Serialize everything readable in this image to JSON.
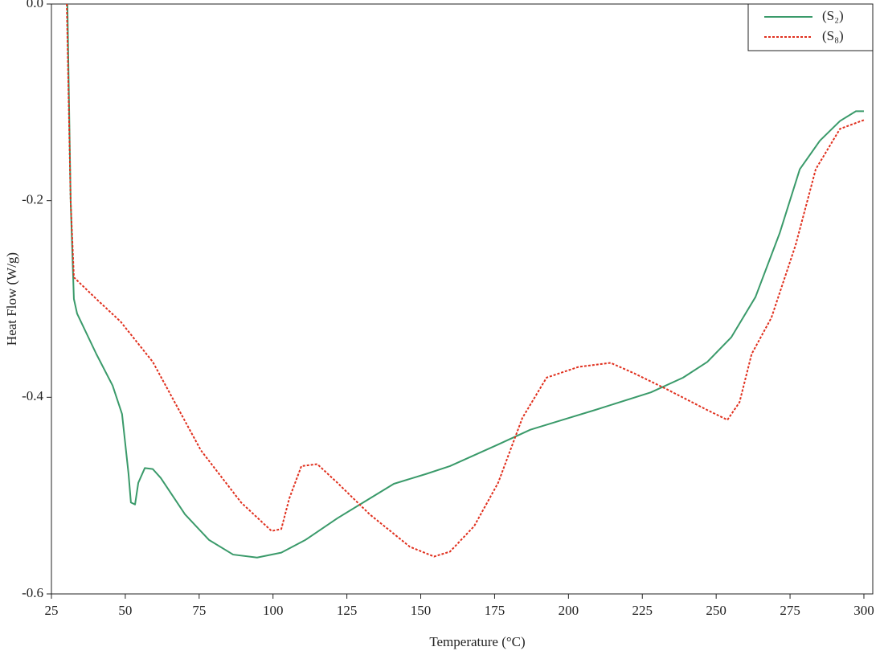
{
  "chart_data": {
    "type": "line",
    "xlabel": "Temperature (°C)",
    "ylabel": "Heat Flow (W/g)",
    "xlim": [
      25,
      303
    ],
    "ylim": [
      -0.6,
      0
    ],
    "xticks": [
      25,
      50,
      75,
      100,
      125,
      150,
      175,
      200,
      225,
      250,
      275,
      300
    ],
    "yticks": [
      {
        "value": 0,
        "label": "0.0"
      },
      -0.2,
      -0.4,
      -0.6
    ],
    "legend": "upper-right",
    "series": [
      {
        "name": "(S₂)",
        "color": "#3a9a6a",
        "dash": "solid",
        "x": [
          30.4,
          31.5,
          32.6,
          33.7,
          40.2,
          45.7,
          48.9,
          51.1,
          51.9,
          53.3,
          54.4,
          56.6,
          59.3,
          62,
          70.2,
          78.3,
          86.5,
          94.6,
          102.8,
          111,
          121.8,
          132.7,
          140.9,
          151.8,
          159.9,
          176.2,
          187.1,
          198,
          208.9,
          227.9,
          238.8,
          247,
          255.1,
          263.3,
          271.5,
          278.3,
          285.1,
          291.9,
          297.3,
          300
        ],
        "values": [
          0,
          -0.2,
          -0.3,
          -0.315,
          -0.356,
          -0.388,
          -0.417,
          -0.478,
          -0.507,
          -0.509,
          -0.487,
          -0.472,
          -0.473,
          -0.482,
          -0.519,
          -0.545,
          -0.56,
          -0.563,
          -0.558,
          -0.545,
          -0.523,
          -0.503,
          -0.488,
          -0.478,
          -0.47,
          -0.448,
          -0.433,
          -0.423,
          -0.413,
          -0.395,
          -0.38,
          -0.364,
          -0.339,
          -0.298,
          -0.233,
          -0.168,
          -0.139,
          -0.119,
          -0.109,
          -0.109
        ]
      },
      {
        "name": "(S₈)",
        "color": "#e0301e",
        "dash": "dotted",
        "x": [
          30.2,
          31.5,
          32.6,
          40.2,
          48.4,
          59.3,
          75.6,
          89.2,
          99.5,
          102.8,
          105.5,
          109.6,
          115,
          121.8,
          132.7,
          146.3,
          154.5,
          159.9,
          168.1,
          176.2,
          184.4,
          192.6,
          203.5,
          214.3,
          222.5,
          233.4,
          247,
          253.8,
          257.9,
          262,
          268.7,
          276.9,
          283.7,
          291.9,
          300
        ],
        "values": [
          0,
          -0.2,
          -0.278,
          -0.3,
          -0.323,
          -0.364,
          -0.454,
          -0.507,
          -0.536,
          -0.534,
          -0.503,
          -0.47,
          -0.468,
          -0.487,
          -0.519,
          -0.552,
          -0.562,
          -0.557,
          -0.531,
          -0.487,
          -0.421,
          -0.38,
          -0.369,
          -0.365,
          -0.376,
          -0.392,
          -0.413,
          -0.423,
          -0.405,
          -0.356,
          -0.319,
          -0.245,
          -0.168,
          -0.127,
          -0.118
        ]
      }
    ]
  }
}
